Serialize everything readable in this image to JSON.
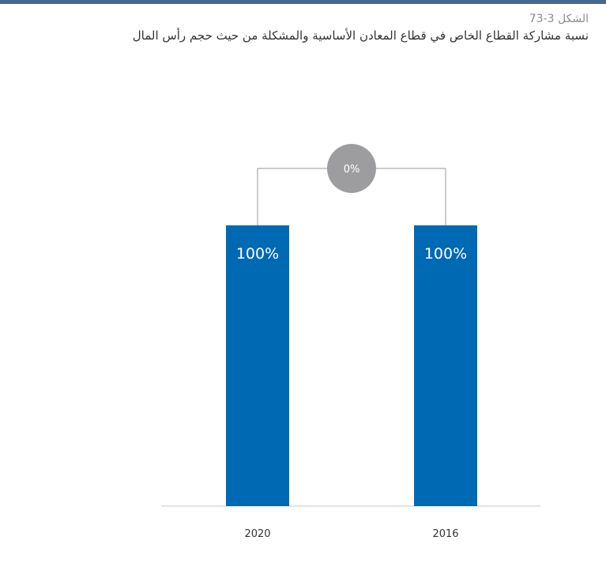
{
  "caption": {
    "label": "الشكل 3-73",
    "title": "نسبة مشاركة القطاع الخاص في قطاع المعادن الأساسية والمشكلة من حيث حجم رأس المال"
  },
  "colors": {
    "bar": "#0069b4",
    "bar_label": "#ffffff",
    "change_circle": "#9d9d9f",
    "change_label": "#ffffff",
    "connector": "#9a9a9a",
    "baseline": "#c9c9c9",
    "tick_label": "#333333",
    "top_rule": "#4a6590"
  },
  "chart_data": {
    "type": "bar",
    "categories": [
      "2020",
      "2016"
    ],
    "values": [
      100,
      100
    ],
    "value_labels": [
      "100%",
      "100%"
    ],
    "change_label": "0%",
    "ylim": [
      0,
      100
    ],
    "title": "",
    "xlabel": "",
    "ylabel": "",
    "grid": false,
    "legend": "none"
  }
}
